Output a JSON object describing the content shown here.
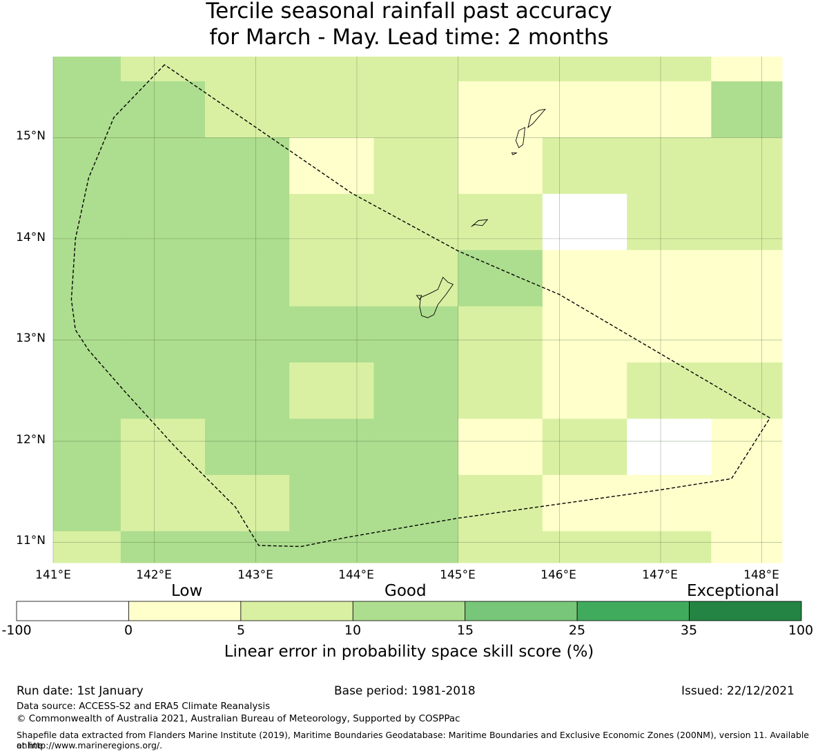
{
  "title": {
    "line1": "Tercile seasonal rainfall past accuracy",
    "line2": "for March - May. Lead time: 2 months"
  },
  "map": {
    "lon_range": [
      141.0,
      148.2
    ],
    "lat_range": [
      10.8,
      15.8
    ],
    "lon_labels": [
      "141°E",
      "142°E",
      "143°E",
      "144°E",
      "145°E",
      "146°E",
      "147°E",
      "148°E"
    ],
    "lat_labels": [
      "15°N",
      "14°N",
      "13°N",
      "12°N",
      "11°N"
    ],
    "lon_ticks": [
      141,
      142,
      143,
      144,
      145,
      146,
      147,
      148
    ],
    "lat_ticks": [
      15,
      14,
      13,
      12,
      11
    ],
    "col_edges": [
      141.0,
      141.667,
      142.5,
      143.333,
      144.167,
      145.0,
      145.833,
      146.667,
      147.5,
      148.2
    ],
    "row_edges": [
      15.8,
      15.556,
      15.0,
      14.444,
      13.889,
      13.333,
      12.778,
      12.222,
      11.667,
      11.111,
      10.8
    ],
    "skill_classes": [
      [
        3,
        2,
        2,
        2,
        2,
        2,
        2,
        2,
        1
      ],
      [
        3,
        3,
        2,
        2,
        2,
        1,
        1,
        1,
        3
      ],
      [
        3,
        3,
        3,
        1,
        2,
        1,
        2,
        2,
        2
      ],
      [
        3,
        3,
        3,
        2,
        2,
        2,
        0,
        2,
        2
      ],
      [
        3,
        3,
        3,
        2,
        2,
        3,
        1,
        1,
        1
      ],
      [
        3,
        3,
        3,
        3,
        3,
        2,
        1,
        1,
        1
      ],
      [
        3,
        3,
        3,
        2,
        3,
        2,
        1,
        2,
        2
      ],
      [
        3,
        2,
        3,
        3,
        3,
        1,
        2,
        0,
        1
      ],
      [
        3,
        2,
        2,
        3,
        3,
        2,
        1,
        1,
        1
      ],
      [
        2,
        3,
        3,
        3,
        3,
        2,
        2,
        2,
        1
      ]
    ],
    "eez_boundary": [
      [
        142.1,
        15.72
      ],
      [
        141.6,
        15.2
      ],
      [
        141.35,
        14.6
      ],
      [
        141.22,
        14.0
      ],
      [
        141.18,
        13.4
      ],
      [
        141.22,
        13.1
      ],
      [
        141.35,
        12.9
      ],
      [
        141.7,
        12.5
      ],
      [
        142.2,
        11.95
      ],
      [
        142.8,
        11.35
      ],
      [
        143.03,
        10.97
      ],
      [
        143.45,
        10.96
      ],
      [
        143.9,
        11.05
      ],
      [
        145.0,
        11.24
      ],
      [
        146.0,
        11.38
      ],
      [
        147.0,
        11.52
      ],
      [
        147.7,
        11.63
      ],
      [
        148.08,
        12.23
      ],
      [
        146.0,
        13.45
      ],
      [
        145.6,
        13.62
      ],
      [
        145.0,
        13.88
      ],
      [
        143.95,
        14.45
      ],
      [
        142.1,
        15.72
      ]
    ],
    "islands": [
      [
        [
          144.64,
          13.24
        ],
        [
          144.62,
          13.33
        ],
        [
          144.63,
          13.42
        ],
        [
          144.72,
          13.46
        ],
        [
          144.8,
          13.5
        ],
        [
          144.85,
          13.62
        ],
        [
          144.9,
          13.57
        ],
        [
          144.95,
          13.55
        ],
        [
          144.88,
          13.45
        ],
        [
          144.8,
          13.35
        ],
        [
          144.76,
          13.25
        ],
        [
          144.7,
          13.22
        ]
      ],
      [
        [
          144.64,
          13.44
        ],
        [
          144.59,
          13.44
        ],
        [
          144.62,
          13.4
        ]
      ],
      [
        [
          145.13,
          14.12
        ],
        [
          145.2,
          14.18
        ],
        [
          145.29,
          14.19
        ],
        [
          145.24,
          14.13
        ],
        [
          145.16,
          14.14
        ]
      ],
      [
        [
          145.6,
          14.9
        ],
        [
          145.57,
          14.97
        ],
        [
          145.6,
          15.07
        ],
        [
          145.66,
          15.1
        ],
        [
          145.65,
          15.0
        ],
        [
          145.64,
          14.93
        ]
      ],
      [
        [
          145.69,
          15.1
        ],
        [
          145.72,
          15.22
        ],
        [
          145.8,
          15.27
        ],
        [
          145.86,
          15.28
        ],
        [
          145.74,
          15.14
        ]
      ],
      [
        [
          145.54,
          14.83
        ],
        [
          145.58,
          14.85
        ],
        [
          145.53,
          14.85
        ]
      ]
    ]
  },
  "colorbar": {
    "category_labels": [
      "Low",
      "Good",
      "Exceptional"
    ],
    "tick_labels": [
      "-100",
      "0",
      "5",
      "10",
      "15",
      "25",
      "35",
      "100"
    ],
    "colors": [
      "#ffffff",
      "#ffffcc",
      "#d9f0a3",
      "#addd8e",
      "#78c679",
      "#41ab5d",
      "#238443"
    ],
    "label": "Linear error in probability space skill score (%)"
  },
  "footer": {
    "run_date": "Run date: 1st January",
    "base_period": "Base period: 1981-2018",
    "issued": "Issued: 22/12/2021",
    "data_source": "Data source: ACCESS-S2 and ERA5 Climate Reanalysis",
    "copyright": "© Commonwealth of Australia 2021, Australian Bureau of Meteorology, Supported by COSPPac",
    "shapefile_line1": "Shapefile data extracted from Flanders Marine Institute (2019), Maritime Boundaries Geodatabase: Maritime Boundaries and Exclusive Economic Zones (200NM), version 11. Available online",
    "shapefile_line2": "at http://www.marineregions.org/."
  }
}
